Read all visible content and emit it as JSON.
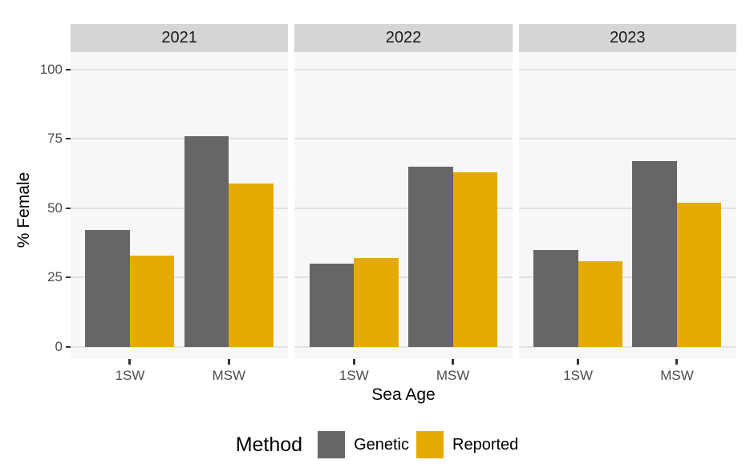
{
  "chart_data": {
    "type": "bar",
    "title": "",
    "faceted": true,
    "facet_labels": [
      "2021",
      "2022",
      "2023"
    ],
    "categories": [
      "1SW",
      "MSW"
    ],
    "series_names": [
      "Genetic",
      "Reported"
    ],
    "facets": [
      {
        "label": "2021",
        "series": [
          {
            "name": "Genetic",
            "values": [
              42,
              76
            ]
          },
          {
            "name": "Reported",
            "values": [
              33,
              59
            ]
          }
        ]
      },
      {
        "label": "2022",
        "series": [
          {
            "name": "Genetic",
            "values": [
              30,
              65
            ]
          },
          {
            "name": "Reported",
            "values": [
              32,
              63
            ]
          }
        ]
      },
      {
        "label": "2023",
        "series": [
          {
            "name": "Genetic",
            "values": [
              35,
              67
            ]
          },
          {
            "name": "Reported",
            "values": [
              31,
              52
            ]
          }
        ]
      }
    ],
    "xlabel": "Sea Age",
    "ylabel": "% Female",
    "ylim": [
      0,
      100
    ],
    "yticks": [
      0,
      25,
      50,
      75,
      100
    ],
    "grid": "horizontal-major",
    "legend": {
      "title": "Method",
      "position": "bottom",
      "entries": [
        {
          "label": "Genetic",
          "color": "#666666"
        },
        {
          "label": "Reported",
          "color": "#E6AB02"
        }
      ]
    },
    "colors": {
      "panel_background": "#F7F7F7",
      "strip_background": "#D5D5D5",
      "gridline": "#E2E2E2",
      "tick_text": "#4D4D4D",
      "axis_title_text": "#000000"
    }
  }
}
